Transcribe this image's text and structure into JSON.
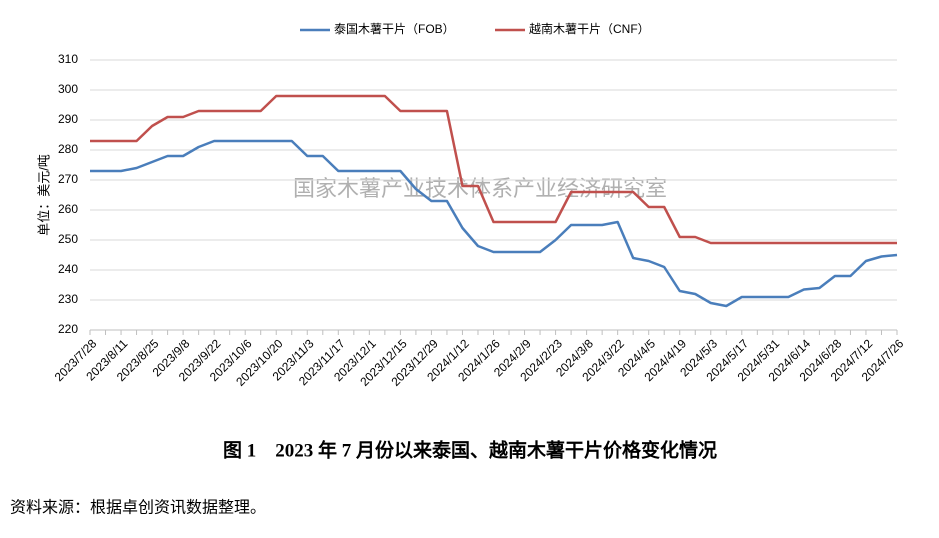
{
  "chart_data": {
    "type": "line",
    "title": "图 1　2023 年 7 月份以来泰国、越南木薯干片价格变化情况",
    "source": "资料来源：根据卓创资讯数据整理。",
    "watermark": "国家木薯产业技术体系产业经济研究室",
    "y_label": "单位：美元/吨",
    "categories": [
      "2023/7/28",
      null,
      "2023/8/11",
      null,
      "2023/8/25",
      null,
      "2023/9/8",
      null,
      "2023/9/22",
      null,
      "2023/10/6",
      null,
      "2023/10/20",
      null,
      "2023/11/3",
      null,
      "2023/11/17",
      null,
      "2023/12/1",
      null,
      "2023/12/15",
      null,
      "2023/12/29",
      null,
      "2024/1/12",
      null,
      "2024/1/26",
      null,
      "2024/2/9",
      null,
      "2024/2/23",
      null,
      "2024/3/8",
      null,
      "2024/3/22",
      null,
      "2024/4/5",
      null,
      "2024/4/19",
      null,
      "2024/5/3",
      null,
      "2024/5/17",
      null,
      "2024/5/31",
      null,
      "2024/6/14",
      null,
      "2024/6/28",
      null,
      "2024/7/12",
      null,
      "2024/7/26"
    ],
    "series": [
      {
        "name": "泰国木薯干片（FOB）",
        "color": "#4a7ebb",
        "values": [
          273,
          273,
          273,
          274,
          276,
          278,
          278,
          281,
          283,
          283,
          283,
          283,
          283,
          283,
          278,
          278,
          273,
          273,
          273,
          273,
          273,
          267,
          263,
          263,
          254,
          248,
          246,
          246,
          246,
          246,
          250,
          255,
          255,
          255,
          256,
          244,
          243,
          241,
          233,
          232,
          229,
          228,
          231,
          231,
          231,
          231,
          233.5,
          234,
          238,
          238,
          243,
          244.5,
          245
        ]
      },
      {
        "name": "越南木薯干片（CNF）",
        "color": "#c0504d",
        "values": [
          283,
          283,
          283,
          283,
          288,
          291,
          291,
          293,
          293,
          293,
          293,
          293,
          298,
          298,
          298,
          298,
          298,
          298,
          298,
          298,
          293,
          293,
          293,
          293,
          268,
          268,
          256,
          256,
          256,
          256,
          256,
          266,
          266,
          266,
          266,
          266,
          261,
          261,
          251,
          251,
          249,
          249,
          249,
          249,
          249,
          249,
          249,
          249,
          249,
          249,
          249,
          249,
          249
        ]
      }
    ],
    "ylim": [
      220,
      310
    ],
    "yticks": [
      220,
      230,
      240,
      250,
      260,
      270,
      280,
      290,
      300,
      310
    ],
    "grid": true
  }
}
